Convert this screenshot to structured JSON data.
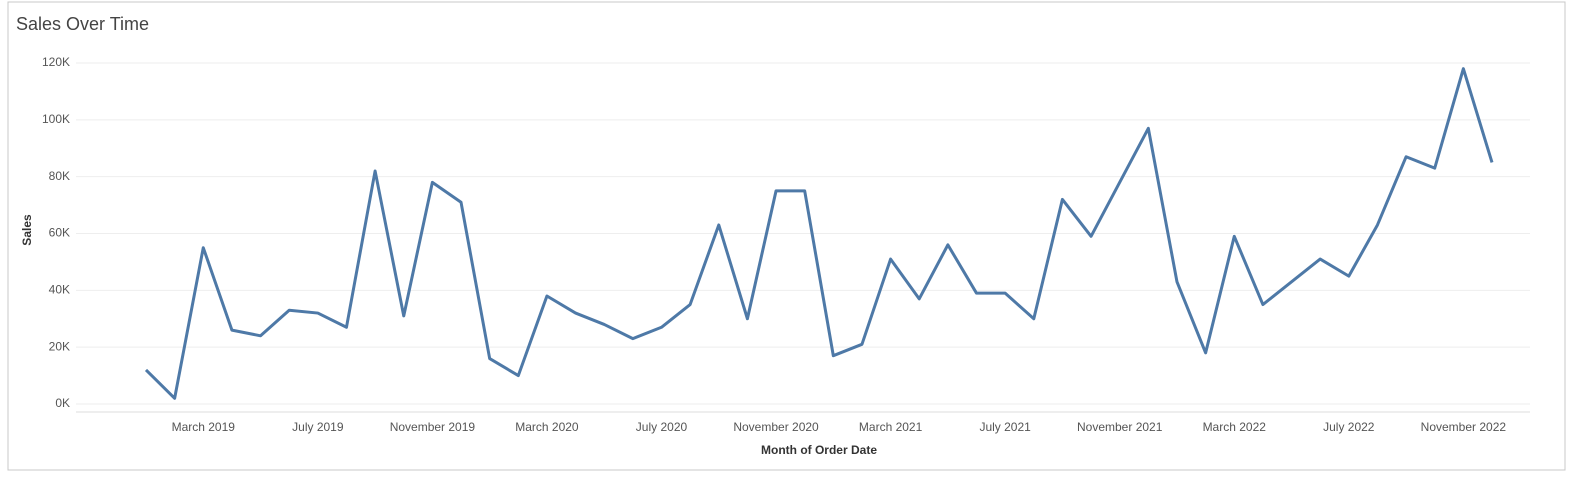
{
  "chart_data": {
    "type": "line",
    "title": "Sales Over Time",
    "x_label": "Month of Order Date",
    "y_label": "Sales",
    "categories": [
      null,
      null,
      "March 2019",
      null,
      null,
      null,
      "July 2019",
      null,
      null,
      null,
      "November 2019",
      null,
      null,
      null,
      "March 2020",
      null,
      null,
      null,
      "July 2020",
      null,
      null,
      null,
      "November 2020",
      null,
      null,
      null,
      "March 2021",
      null,
      null,
      null,
      "July 2021",
      null,
      null,
      null,
      "November 2021",
      null,
      null,
      null,
      "March 2022",
      null,
      null,
      null,
      "July 2022",
      null,
      null,
      null,
      "November 2022",
      null
    ],
    "series": [
      {
        "name": "Sales",
        "color": "#4e79a7",
        "values": [
          12000,
          2000,
          55000,
          26000,
          24000,
          33000,
          32000,
          27000,
          82000,
          31000,
          78000,
          71000,
          16000,
          10000,
          38000,
          32000,
          28000,
          23000,
          27000,
          35000,
          63000,
          30000,
          75000,
          75000,
          17000,
          21000,
          51000,
          37000,
          56000,
          39000,
          39000,
          30000,
          72000,
          59000,
          78000,
          97000,
          43000,
          18000,
          59000,
          35000,
          43000,
          51000,
          45000,
          63000,
          87000,
          83000,
          118000,
          85000
        ]
      }
    ],
    "ylim": [
      0,
      120000
    ],
    "yticks": [
      {
        "value": 0,
        "label": "0K"
      },
      {
        "value": 20000,
        "label": "20K"
      },
      {
        "value": 40000,
        "label": "40K"
      },
      {
        "value": 60000,
        "label": "60K"
      },
      {
        "value": 80000,
        "label": "80K"
      },
      {
        "value": 100000,
        "label": "100K"
      },
      {
        "value": 120000,
        "label": "120K"
      }
    ],
    "grid": true
  }
}
